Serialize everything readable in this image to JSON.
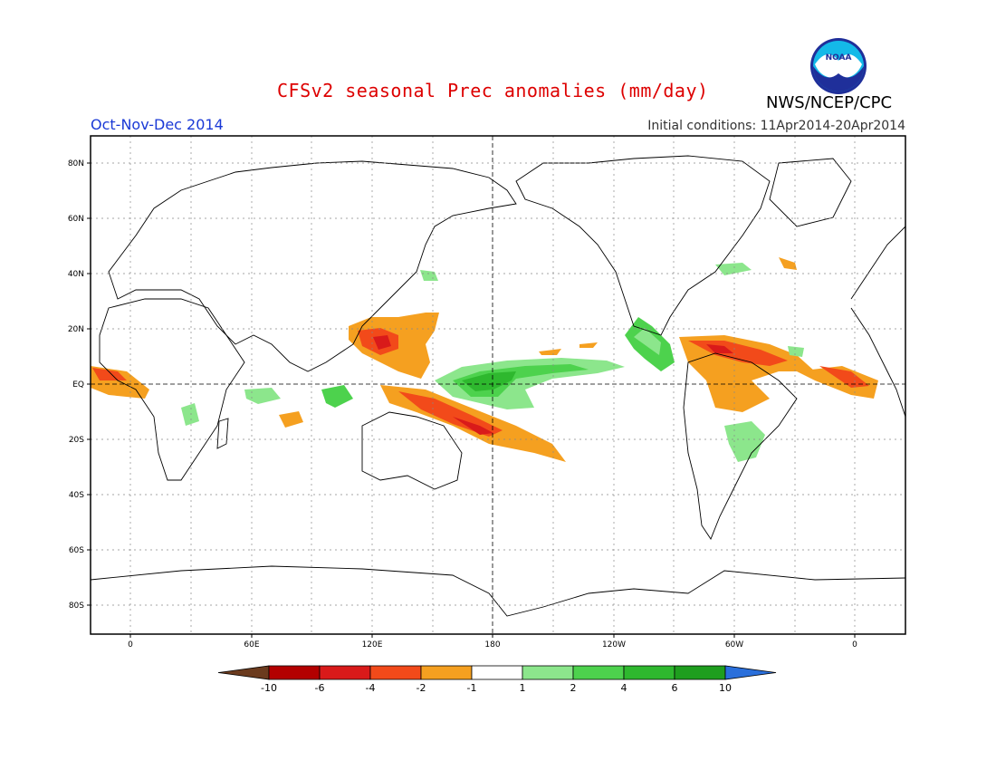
{
  "title": "CFSv2 seasonal Prec anomalies (mm/day)",
  "season": "Oct-Nov-Dec 2014",
  "initial_conditions": "Initial conditions: 11Apr2014-20Apr2014",
  "agency": "NWS/NCEP/CPC",
  "logo_text": "NOAA",
  "map": {
    "lat_labels": [
      "80N",
      "60N",
      "40N",
      "20N",
      "EQ",
      "20S",
      "40S",
      "60S",
      "80S"
    ],
    "lon_labels": [
      "0",
      "60E",
      "120E",
      "180",
      "120W",
      "60W",
      "0"
    ]
  },
  "colorbar": {
    "labels": [
      "-10",
      "-6",
      "-4",
      "-2",
      "-1",
      "1",
      "2",
      "4",
      "6",
      "10"
    ],
    "colors": [
      "#6b3b1e",
      "#b30000",
      "#d91a1a",
      "#f24a1a",
      "#f5a020",
      "#ffffff",
      "#8ce68c",
      "#4dd24d",
      "#2eb82e",
      "#1e9e1e",
      "#2a6fdb"
    ]
  },
  "colors": {
    "title": "#dd0000",
    "season": "#1a39d6",
    "wet_light": "#8ce68c",
    "wet_mid": "#4dd24d",
    "wet_dark": "#2eb82e",
    "dry_light": "#f5a020",
    "dry_mid": "#f24a1a",
    "dry_dark": "#d91a1a"
  }
}
